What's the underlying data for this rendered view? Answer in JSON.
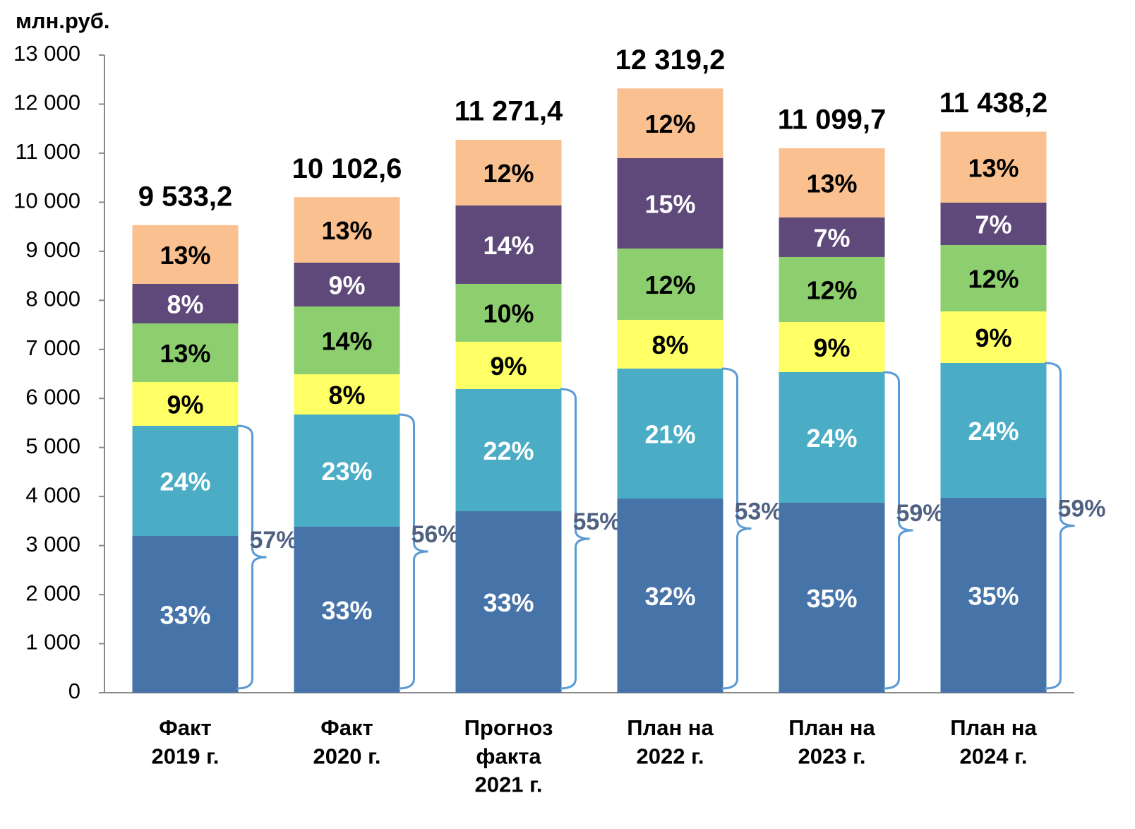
{
  "chart_data": {
    "type": "stacked_bar",
    "unit_label": "млн.руб.",
    "categories": [
      "Факт\n2019 г.",
      "Факт\n2020 г.",
      "Прогноз\nфакта\n2021 г.",
      "План на\n2022 г.",
      "План на\n2023 г.",
      "План на\n2024 г."
    ],
    "ylim": [
      0,
      13000
    ],
    "yticks": [
      {
        "value": 0,
        "label": "0"
      },
      {
        "value": 1000,
        "label": "1 000"
      },
      {
        "value": 2000,
        "label": "2 000"
      },
      {
        "value": 3000,
        "label": "3 000"
      },
      {
        "value": 4000,
        "label": "4 000"
      },
      {
        "value": 5000,
        "label": "5 000"
      },
      {
        "value": 6000,
        "label": "6 000"
      },
      {
        "value": 7000,
        "label": "7 000"
      },
      {
        "value": 8000,
        "label": "8 000"
      },
      {
        "value": 9000,
        "label": "9 000"
      },
      {
        "value": 10000,
        "label": "10 000"
      },
      {
        "value": 11000,
        "label": "11 000"
      },
      {
        "value": 12000,
        "label": "12 000"
      },
      {
        "value": 13000,
        "label": "13 000"
      }
    ],
    "grid": false,
    "series": [
      {
        "color": "#4673a8",
        "label_color": "#ffffff",
        "values": [
          3196,
          3383,
          3700,
          3959,
          3873,
          3974
        ],
        "shares": [
          "33%",
          "33%",
          "33%",
          "32%",
          "35%",
          "35%"
        ]
      },
      {
        "color": "#4bacc6",
        "label_color": "#ffffff",
        "values": [
          2246,
          2289,
          2491,
          2649,
          2663,
          2749
        ],
        "shares": [
          "24%",
          "23%",
          "22%",
          "21%",
          "24%",
          "24%"
        ]
      },
      {
        "color": "#ffff66",
        "label_color": "#000000",
        "values": [
          893,
          821,
          964,
          994,
          1022,
          1051
        ],
        "shares": [
          "9%",
          "8%",
          "9%",
          "8%",
          "9%",
          "9%"
        ]
      },
      {
        "color": "#8dcf6f",
        "label_color": "#000000",
        "values": [
          1195,
          1382,
          1181,
          1454,
          1325,
          1353
        ],
        "shares": [
          "13%",
          "14%",
          "10%",
          "12%",
          "12%",
          "12%"
        ]
      },
      {
        "color": "#5f497a",
        "label_color": "#ffffff",
        "values": [
          806,
          893,
          1598,
          1843,
          806,
          864
        ],
        "shares": [
          "8%",
          "9%",
          "14%",
          "15%",
          "7%",
          "7%"
        ]
      },
      {
        "color": "#fac090",
        "label_color": "#000000",
        "values": [
          1197,
          1335,
          1337,
          1420,
          1411,
          1447
        ],
        "shares": [
          "13%",
          "13%",
          "12%",
          "12%",
          "13%",
          "13%"
        ]
      }
    ],
    "totals": {
      "values": [
        9533.2,
        10102.6,
        11271.4,
        12319.2,
        11099.7,
        11438.2
      ],
      "value_labels": [
        "9 533,2",
        "10 102,6",
        "11 271,4",
        "12 319,2",
        "11 099,7",
        "11 438,2"
      ]
    },
    "bracket_color": "#5b9bd5",
    "bracket_labels": [
      "57%",
      "56%",
      "55%",
      "53%",
      "59%",
      "59%"
    ]
  }
}
